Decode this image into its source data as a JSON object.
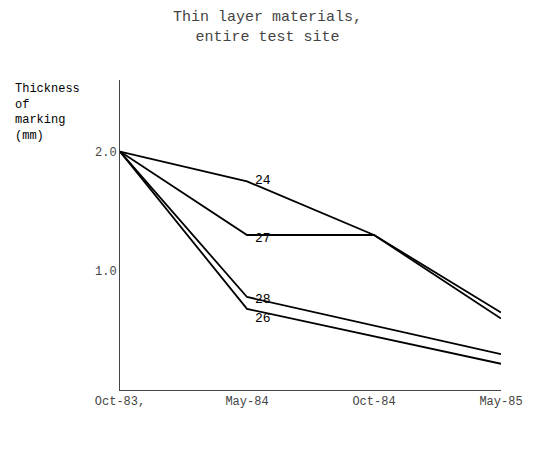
{
  "chart_data": {
    "type": "line",
    "title": "Thin layer materials,\nentire test site",
    "y_label": "Thickness\nof\nmarking\n(mm)",
    "categories": [
      "Oct-83,",
      "May-84",
      "Oct-84",
      "May-85"
    ],
    "series": [
      {
        "x": [
          "Oct-83,",
          "May-84",
          "Oct-84",
          "May-85"
        ],
        "values": [
          2.0,
          1.75,
          1.3,
          0.65
        ],
        "color": "#000000"
      },
      {
        "x": [
          "Oct-83,",
          "May-84",
          "Oct-84",
          "May-85"
        ],
        "values": [
          2.0,
          1.3,
          1.3,
          0.6
        ],
        "color": "#000000"
      },
      {
        "x": [
          "Oct-83,",
          "May-84",
          "May-85"
        ],
        "values": [
          2.0,
          0.78,
          0.3
        ],
        "color": "#000000"
      },
      {
        "x": [
          "Oct-83,",
          "May-84",
          "May-85"
        ],
        "values": [
          2.0,
          0.68,
          0.22
        ],
        "color": "#000000"
      }
    ],
    "annotations": [
      {
        "text": "24",
        "x": "May-84",
        "y": 1.76
      },
      {
        "text": "27",
        "x": "May-84",
        "y": 1.27
      },
      {
        "text": "28",
        "x": "May-84",
        "y": 0.76
      },
      {
        "text": "26",
        "x": "May-84",
        "y": 0.6
      }
    ],
    "ylim": [
      0,
      2.6
    ],
    "yticks": [
      {
        "value": 1.0,
        "label": "1.0"
      },
      {
        "value": 2.0,
        "label": "2.0"
      }
    ],
    "grid": false
  }
}
